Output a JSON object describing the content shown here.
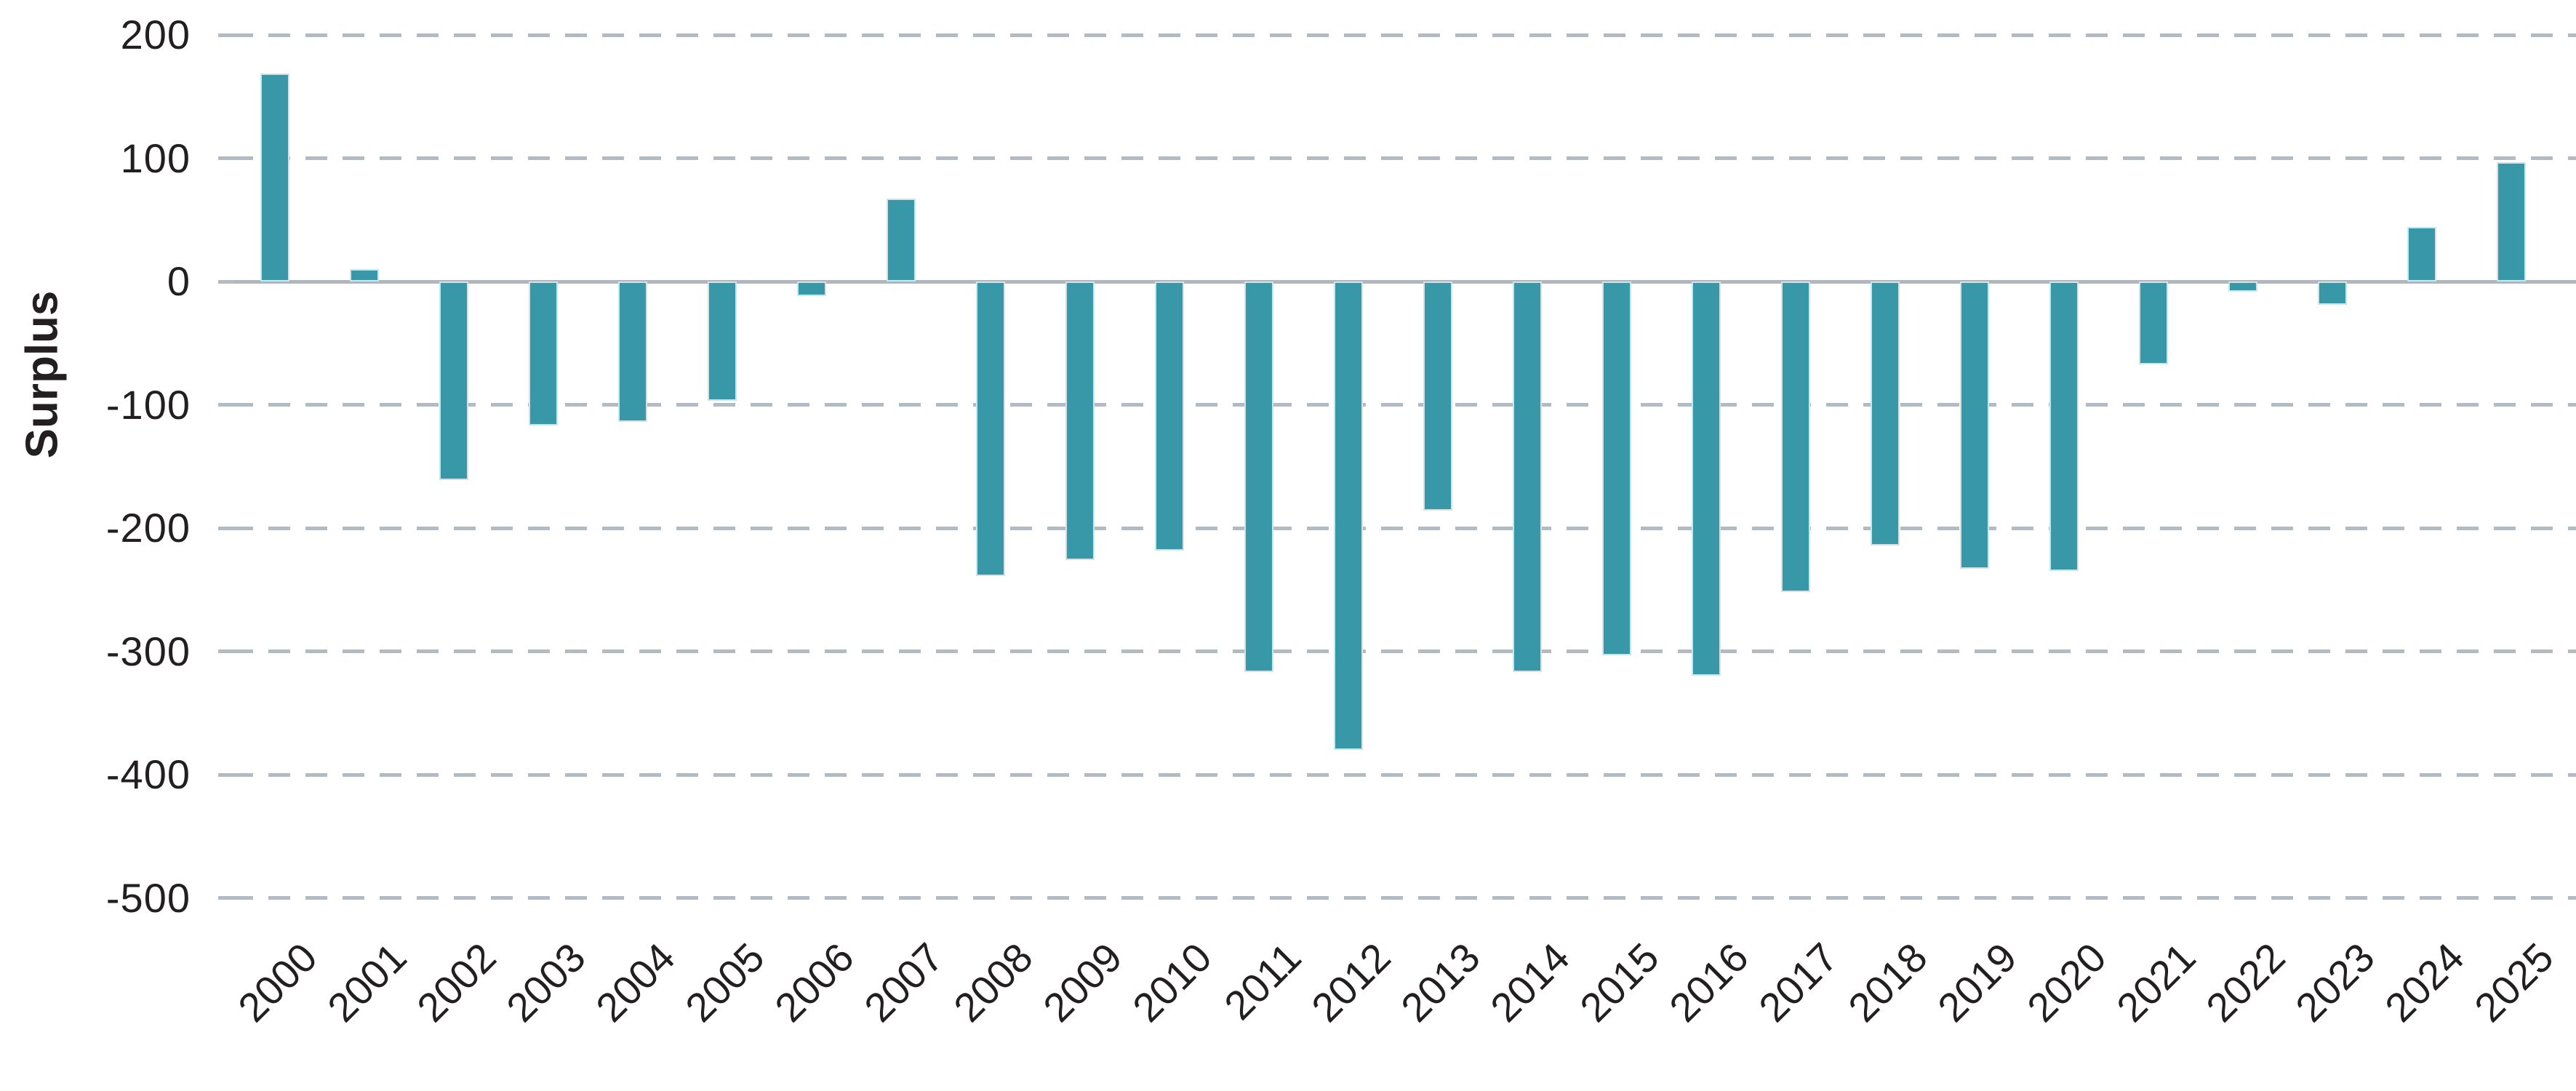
{
  "chart_data": {
    "type": "bar",
    "title": "",
    "xlabel": "",
    "ylabel": "Surplus",
    "categories": [
      "2000",
      "2001",
      "2002",
      "2003",
      "2004",
      "2005",
      "2006",
      "2007",
      "2008",
      "2009",
      "2010",
      "2011",
      "2012",
      "2013",
      "2014",
      "2015",
      "2016",
      "2017",
      "2018",
      "2019",
      "2020",
      "2021",
      "2022",
      "2023",
      "2024",
      "2025"
    ],
    "values": [
      169,
      10,
      -161,
      -117,
      -114,
      -97,
      -12,
      67,
      -239,
      -226,
      -218,
      -317,
      -380,
      -186,
      -317,
      -303,
      -320,
      -252,
      -214,
      -233,
      -235,
      -67,
      -8,
      -19,
      44,
      97
    ],
    "ylim": [
      -500,
      200
    ],
    "yticks": [
      200,
      100,
      0,
      -100,
      -200,
      -300,
      -400,
      -500
    ],
    "grid": "horizontal-dashed",
    "legend": "none",
    "colors": {
      "bar": "#3898a8",
      "bar_edge": "#cde4ea",
      "gridline": "#b2bac3",
      "zero_axis": "#aeb7c0",
      "text": "#231f20"
    }
  }
}
